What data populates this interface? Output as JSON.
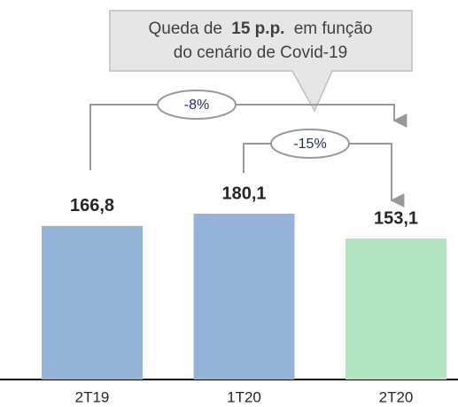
{
  "chart_data": {
    "type": "bar",
    "categories": [
      "2T19",
      "1T20",
      "2T20"
    ],
    "values": [
      166.8,
      180.1,
      153.1
    ],
    "value_labels": [
      "166,8",
      "180,1",
      "153,1"
    ],
    "colors": [
      "#95b3d7",
      "#95b3d7",
      "#b3e6c0"
    ],
    "annotations": {
      "callout": {
        "line1": [
          "Queda de",
          "15 p.p.",
          "em função"
        ],
        "line2": "do cenário de Covid-19"
      },
      "changes": [
        "-8%",
        "-15%"
      ]
    }
  }
}
